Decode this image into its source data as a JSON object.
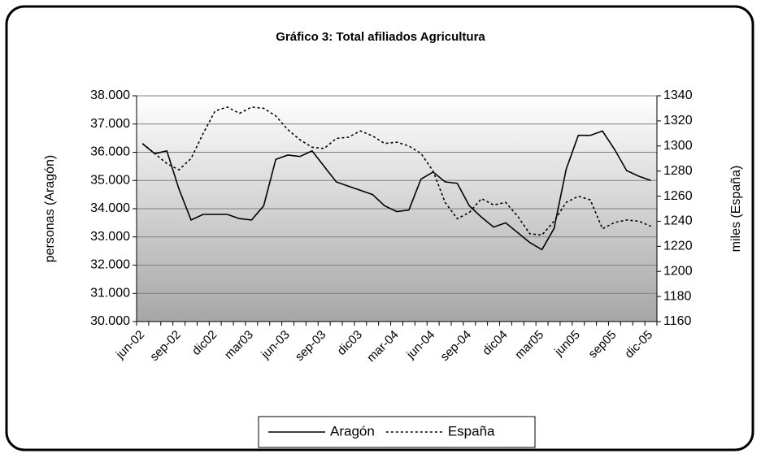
{
  "chart_data": {
    "type": "line",
    "title": "Gráfico 3: Total afiliados Agricultura",
    "ylabel": "personas (Aragón)",
    "y2label": "miles (España)",
    "categories": [
      "jun-02",
      null,
      null,
      "sep-02",
      null,
      null,
      "dic02",
      null,
      null,
      "mar03",
      null,
      null,
      "jun-03",
      null,
      null,
      "sep-03",
      null,
      null,
      "dic03",
      null,
      null,
      "mar-04",
      null,
      null,
      "jun-04",
      null,
      null,
      "sep-04",
      null,
      null,
      "dic04",
      null,
      null,
      "mar05",
      null,
      null,
      "jun05",
      null,
      null,
      "sep05",
      null,
      null,
      "dic-05"
    ],
    "series": [
      {
        "name": "Aragón",
        "color": "#000000",
        "line_style": "solid",
        "values": [
          36300,
          35950,
          36050,
          34700,
          33600,
          33800,
          33800,
          33800,
          33650,
          33600,
          34100,
          35750,
          35900,
          35850,
          36050,
          35500,
          34950,
          34800,
          34650,
          34500,
          34100,
          33900,
          33950,
          35050,
          35300,
          34950,
          34900,
          34100,
          33700,
          33350,
          33500,
          33150,
          32800,
          32550,
          33300,
          35400,
          36600,
          36600,
          36750,
          36100,
          35350,
          35150,
          35000
        ]
      },
      {
        "name": "España",
        "color": "#000000",
        "line_style": "dashed",
        "axis": "y2",
        "values": [
          1302,
          1294,
          1286,
          1281,
          1290,
          1310,
          1328,
          1331,
          1326,
          1331,
          1330,
          1324,
          1313,
          1305,
          1299,
          1298,
          1306,
          1307,
          1312,
          1308,
          1302,
          1303,
          1300,
          1294,
          1280,
          1255,
          1242,
          1247,
          1258,
          1253,
          1255,
          1244,
          1230,
          1229,
          1240,
          1255,
          1260,
          1257,
          1234,
          1239,
          1241,
          1240,
          1236
        ]
      }
    ],
    "ylim": [
      30000,
      38000
    ],
    "yticks": [
      {
        "value": 30000,
        "label": "30.000"
      },
      {
        "value": 31000,
        "label": "31.000"
      },
      {
        "value": 32000,
        "label": "32.000"
      },
      {
        "value": 33000,
        "label": "33.000"
      },
      {
        "value": 34000,
        "label": "34.000"
      },
      {
        "value": 35000,
        "label": "35.000"
      },
      {
        "value": 36000,
        "label": "36.000"
      },
      {
        "value": 37000,
        "label": "37.000"
      },
      {
        "value": 38000,
        "label": "38.000"
      }
    ],
    "y2lim": [
      1160,
      1340
    ],
    "y2ticks": [
      1160,
      1180,
      1200,
      1220,
      1240,
      1260,
      1280,
      1300,
      1320,
      1340
    ],
    "grid": true,
    "legend": "bottom"
  }
}
